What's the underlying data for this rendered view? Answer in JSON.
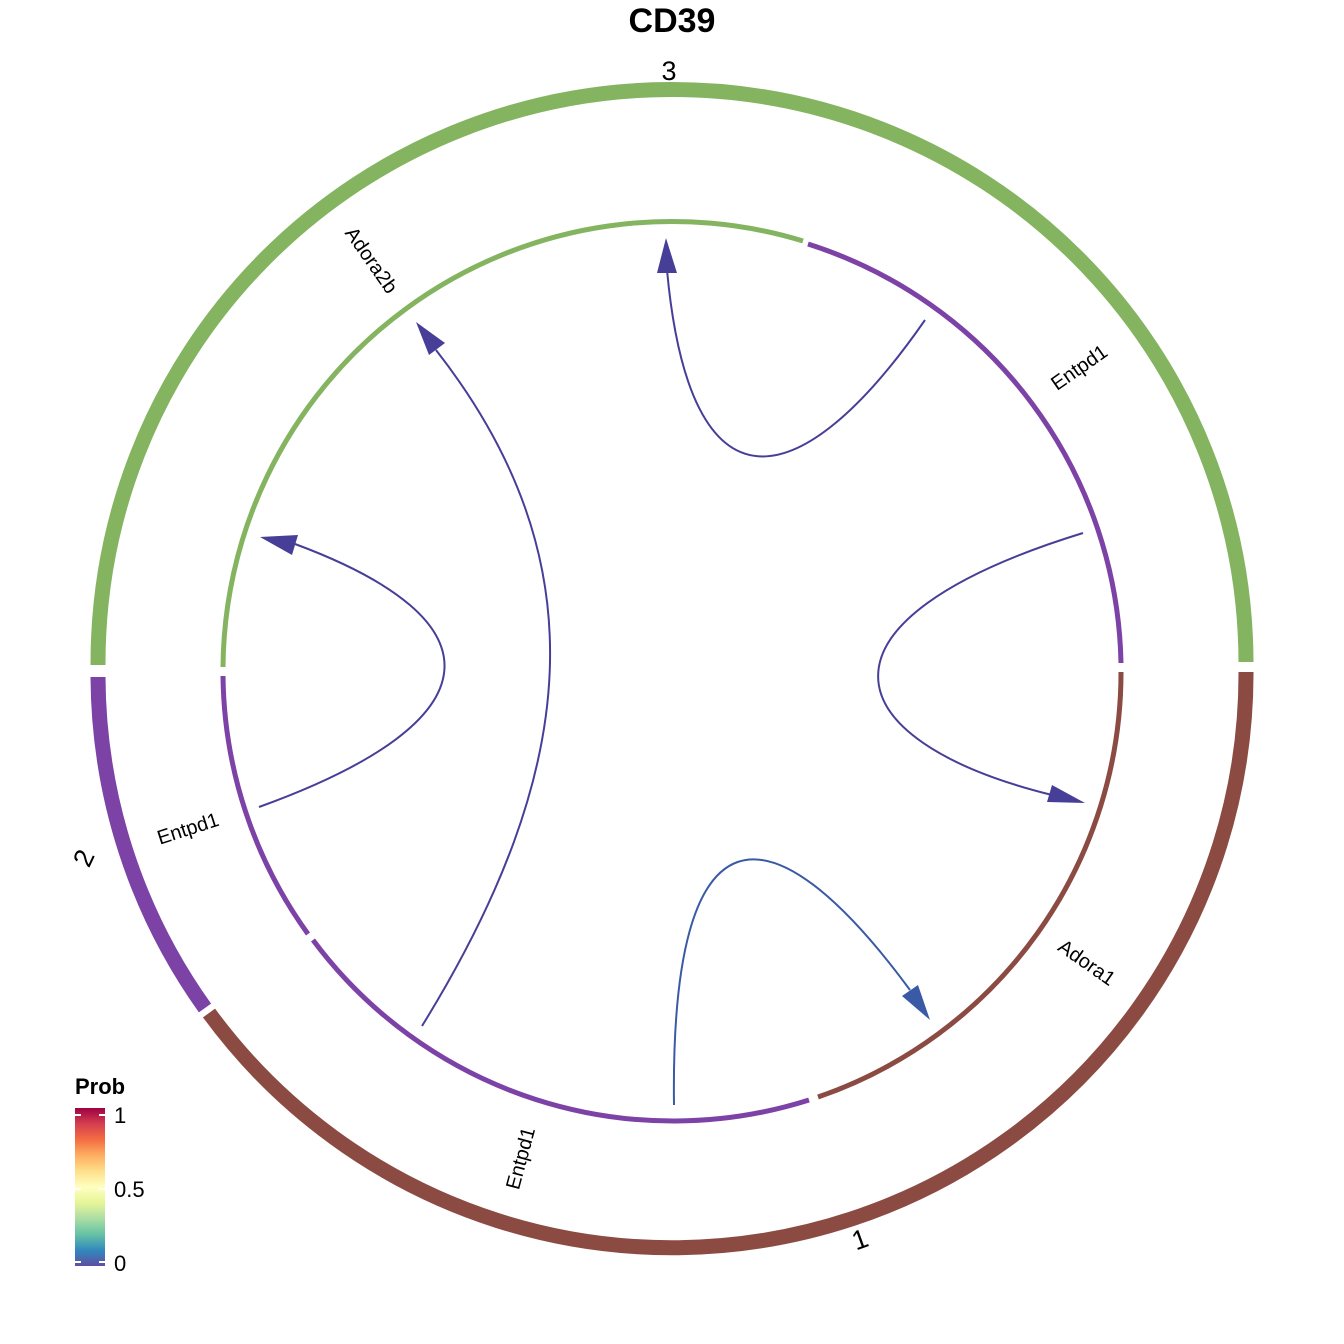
{
  "title": "CD39",
  "groups": [
    {
      "id": "3",
      "label": "3",
      "color": "#84B460"
    },
    {
      "id": "1",
      "label": "1",
      "color": "#8B4B43"
    },
    {
      "id": "2",
      "label": "2",
      "color": "#7D42A6"
    }
  ],
  "genes": [
    {
      "label": "Adora2b",
      "group": "3",
      "color": "#84B460"
    },
    {
      "label": "Entpd1",
      "group": "3",
      "color": "#7D42A6"
    },
    {
      "label": "Adora1",
      "group": "1",
      "color": "#8B4B43"
    },
    {
      "label": "Entpd1",
      "group": "1",
      "color": "#7D42A6"
    },
    {
      "label": "Entpd1",
      "group": "2",
      "color": "#7D42A6"
    }
  ],
  "links": [
    {
      "from": "Entpd1 (3)",
      "to": "Adora2b (3)",
      "color": "#473F97"
    },
    {
      "from": "Entpd1 (3)",
      "to": "Adora1 (1)",
      "color": "#473F97"
    },
    {
      "from": "Entpd1 (1)",
      "to": "Adora1 (1)",
      "color": "#3B5AA6"
    },
    {
      "from": "Entpd1 (1)",
      "to": "Adora2b (3)",
      "color": "#473F97"
    },
    {
      "from": "Entpd1 (2)",
      "to": "Adora2b (3)",
      "color": "#473F97"
    }
  ],
  "legend": {
    "title": "Prob",
    "ticks": [
      "1",
      "0.5",
      "0"
    ],
    "gradient": [
      "#9E0142",
      "#D53E4F",
      "#F46D43",
      "#FDAE61",
      "#FEE08B",
      "#FFFFBF",
      "#E6F598",
      "#ABDDA4",
      "#66C2A5",
      "#3288BD",
      "#5E4FA2"
    ]
  }
}
